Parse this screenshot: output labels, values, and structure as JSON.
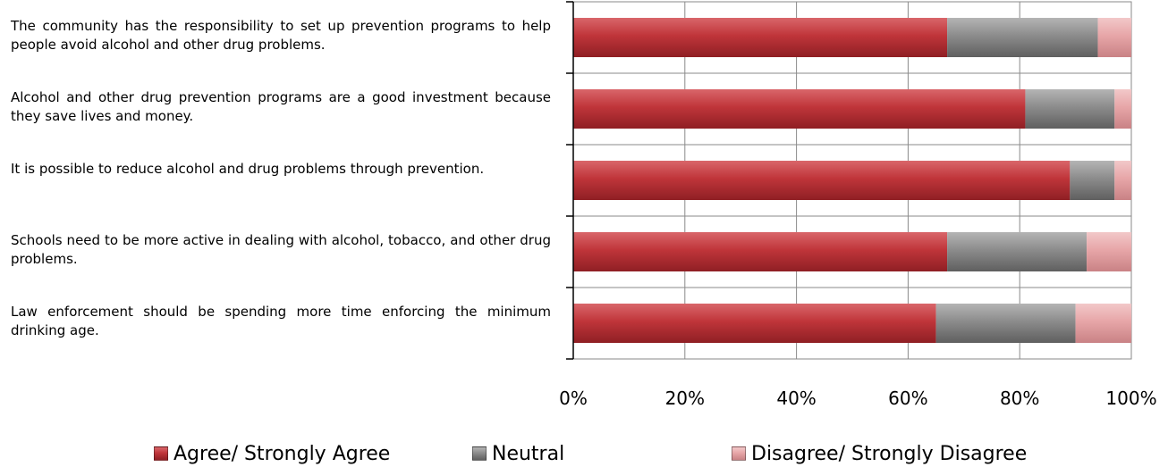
{
  "chart_data": {
    "type": "bar",
    "orientation": "horizontal",
    "stacked": true,
    "percent": true,
    "categories": [
      "The community has the responsibility to set up prevention programs to help people avoid alcohol and other drug problems.",
      "Alcohol and other drug prevention programs are a good investment because they save lives and money.",
      "It is possible to reduce alcohol and drug problems through prevention.",
      "Schools need to be more active in dealing with alcohol, tobacco, and other drug problems.",
      "Law enforcement should be spending more time enforcing the minimum drinking age."
    ],
    "series": [
      {
        "name": "Agree/ Strongly Agree",
        "color": "#c0353a",
        "values": [
          67,
          81,
          89,
          67,
          65
        ]
      },
      {
        "name": "Neutral",
        "color": "#8c8c8c",
        "values": [
          27,
          16,
          8,
          25,
          25
        ]
      },
      {
        "name": "Disagree/ Strongly Disagree",
        "color": "#e7a6a8",
        "values": [
          6,
          3,
          3,
          8,
          10
        ]
      }
    ],
    "x_ticks": [
      "0%",
      "20%",
      "40%",
      "60%",
      "80%",
      "100%"
    ],
    "xlim": [
      0,
      100
    ],
    "grid": true,
    "legend": "bottom",
    "title": "",
    "xlabel": "",
    "ylabel": ""
  }
}
